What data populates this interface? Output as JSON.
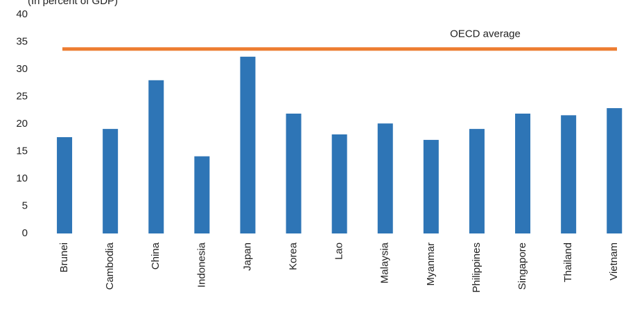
{
  "chart_data": {
    "type": "bar",
    "title": "(In percent of GDP)",
    "categories": [
      "Brunei",
      "Cambodia",
      "China",
      "Indonesia",
      "Japan",
      "Korea",
      "Lao",
      "Malaysia",
      "Myanmar",
      "Philippines",
      "Singapore",
      "Thailand",
      "Vietnam"
    ],
    "values": [
      17.6,
      19.1,
      28.0,
      14.1,
      32.3,
      21.9,
      18.1,
      20.1,
      17.1,
      19.1,
      21.9,
      21.6,
      22.9
    ],
    "color": "#2e75b6",
    "ylim": [
      0,
      40
    ],
    "yticks": [
      0,
      5,
      10,
      15,
      20,
      25,
      30,
      35,
      40
    ],
    "grid": false,
    "reference_line": {
      "label": "OECD average",
      "value": 33.7,
      "color": "#ed7d31"
    }
  }
}
